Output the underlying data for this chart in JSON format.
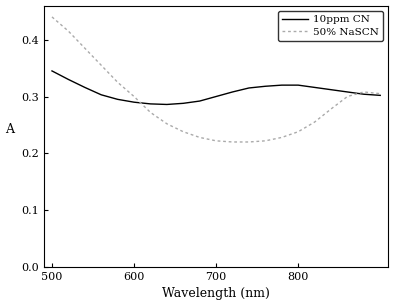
{
  "title": "",
  "xlabel": "Wavelength (nm)",
  "ylabel": "A",
  "xlim": [
    490,
    910
  ],
  "ylim": [
    0.0,
    0.46
  ],
  "xticks": [
    500,
    600,
    700,
    800
  ],
  "xtick_labels": [
    "500",
    "600",
    "700",
    "800"
  ],
  "yticks": [
    0.0,
    0.1,
    0.2,
    0.3,
    0.4
  ],
  "ytick_labels": [
    "0.0",
    "0.1",
    "0.2",
    "0.3",
    "0.4"
  ],
  "legend": [
    "10ppm CN",
    "50% NaSCN"
  ],
  "line1_color": "#000000",
  "line2_color": "#aaaaaa",
  "line1_style": "solid",
  "line2_style": "dotted",
  "line1_x": [
    500,
    520,
    540,
    560,
    580,
    600,
    620,
    640,
    660,
    680,
    700,
    720,
    740,
    760,
    780,
    800,
    820,
    840,
    860,
    880,
    900
  ],
  "line1_y": [
    0.345,
    0.33,
    0.316,
    0.303,
    0.295,
    0.29,
    0.287,
    0.286,
    0.288,
    0.292,
    0.3,
    0.308,
    0.315,
    0.318,
    0.32,
    0.32,
    0.316,
    0.312,
    0.308,
    0.304,
    0.302
  ],
  "line2_x": [
    500,
    520,
    540,
    560,
    580,
    600,
    620,
    640,
    660,
    680,
    700,
    720,
    740,
    760,
    780,
    800,
    820,
    840,
    860,
    880,
    900
  ],
  "line2_y": [
    0.44,
    0.415,
    0.385,
    0.355,
    0.325,
    0.3,
    0.272,
    0.252,
    0.238,
    0.228,
    0.222,
    0.22,
    0.22,
    0.222,
    0.228,
    0.238,
    0.255,
    0.278,
    0.3,
    0.308,
    0.305
  ],
  "background_color": "#ffffff",
  "legend_loc": "upper right",
  "legend_fontsize": 7.5,
  "axis_fontsize": 9,
  "tick_fontsize": 8
}
